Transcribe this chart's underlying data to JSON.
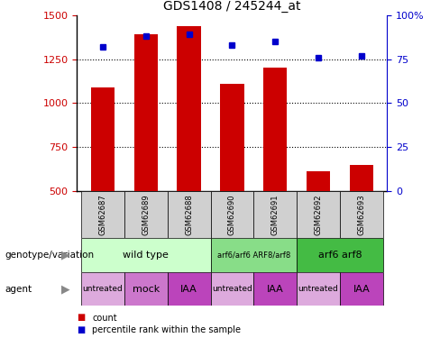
{
  "title": "GDS1408 / 245244_at",
  "samples": [
    "GSM62687",
    "GSM62689",
    "GSM62688",
    "GSM62690",
    "GSM62691",
    "GSM62692",
    "GSM62693"
  ],
  "counts": [
    1090,
    1390,
    1440,
    1110,
    1200,
    610,
    650
  ],
  "percentile_ranks": [
    82,
    88,
    89,
    83,
    85,
    76,
    77
  ],
  "ylim_left": [
    500,
    1500
  ],
  "ylim_right": [
    0,
    100
  ],
  "yticks_left": [
    500,
    750,
    1000,
    1250,
    1500
  ],
  "yticks_right": [
    0,
    25,
    50,
    75,
    100
  ],
  "bar_color": "#cc0000",
  "dot_color": "#0000cc",
  "background_color": "#ffffff",
  "genotype_groups": [
    {
      "label": "wild type",
      "start": 0,
      "end": 2,
      "color": "#ccffcc"
    },
    {
      "label": "arf6/arf6 ARF8/arf8",
      "start": 3,
      "end": 4,
      "color": "#88dd88"
    },
    {
      "label": "arf6 arf8",
      "start": 5,
      "end": 6,
      "color": "#44bb44"
    }
  ],
  "agent_groups": [
    {
      "label": "untreated",
      "start": 0,
      "end": 0,
      "color": "#ddaadd"
    },
    {
      "label": "mock",
      "start": 1,
      "end": 1,
      "color": "#cc77cc"
    },
    {
      "label": "IAA",
      "start": 2,
      "end": 2,
      "color": "#bb44bb"
    },
    {
      "label": "untreated",
      "start": 3,
      "end": 3,
      "color": "#ddaadd"
    },
    {
      "label": "IAA",
      "start": 4,
      "end": 4,
      "color": "#bb44bb"
    },
    {
      "label": "untreated",
      "start": 5,
      "end": 5,
      "color": "#ddaadd"
    },
    {
      "label": "IAA",
      "start": 6,
      "end": 6,
      "color": "#bb44bb"
    }
  ],
  "legend_count_color": "#cc0000",
  "legend_pct_color": "#0000cc",
  "xlabel_genotype": "genotype/variation",
  "xlabel_agent": "agent",
  "right_ylabel_color": "#0000cc",
  "left_ylabel_color": "#cc0000",
  "sample_box_color": "#d0d0d0"
}
